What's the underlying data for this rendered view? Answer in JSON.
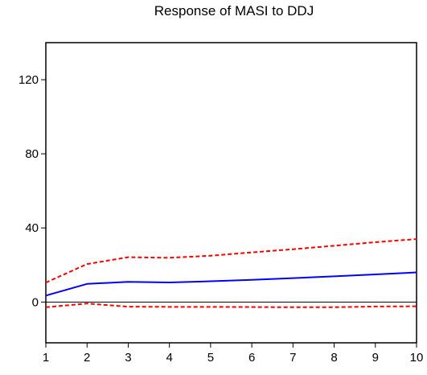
{
  "chart_data": {
    "type": "line",
    "title": "Response of MASI to DDJ",
    "xlabel": "",
    "ylabel": "",
    "x": [
      1,
      2,
      3,
      4,
      5,
      6,
      7,
      8,
      9,
      10
    ],
    "xlim": [
      1,
      10
    ],
    "ylim": [
      -22,
      140
    ],
    "yticks": [
      0,
      40,
      80,
      120
    ],
    "xticks": [
      1,
      2,
      3,
      4,
      5,
      6,
      7,
      8,
      9,
      10
    ],
    "grid": false,
    "legend": "none",
    "zero_line": true,
    "series": [
      {
        "values": [
          3.5,
          9.8,
          10.9,
          10.6,
          11.2,
          12.0,
          12.9,
          13.9,
          14.9,
          16.0
        ],
        "color": "#0000ff",
        "style": "solid"
      },
      {
        "values": [
          10.5,
          20.5,
          24.2,
          23.9,
          25.0,
          26.8,
          28.5,
          30.4,
          32.3,
          34.0
        ],
        "color": "#ff0000",
        "style": "dashed"
      },
      {
        "values": [
          -2.8,
          -0.8,
          -2.5,
          -2.6,
          -2.6,
          -2.7,
          -2.8,
          -2.8,
          -2.4,
          -2.3
        ],
        "color": "#ff0000",
        "style": "dashed"
      }
    ]
  }
}
